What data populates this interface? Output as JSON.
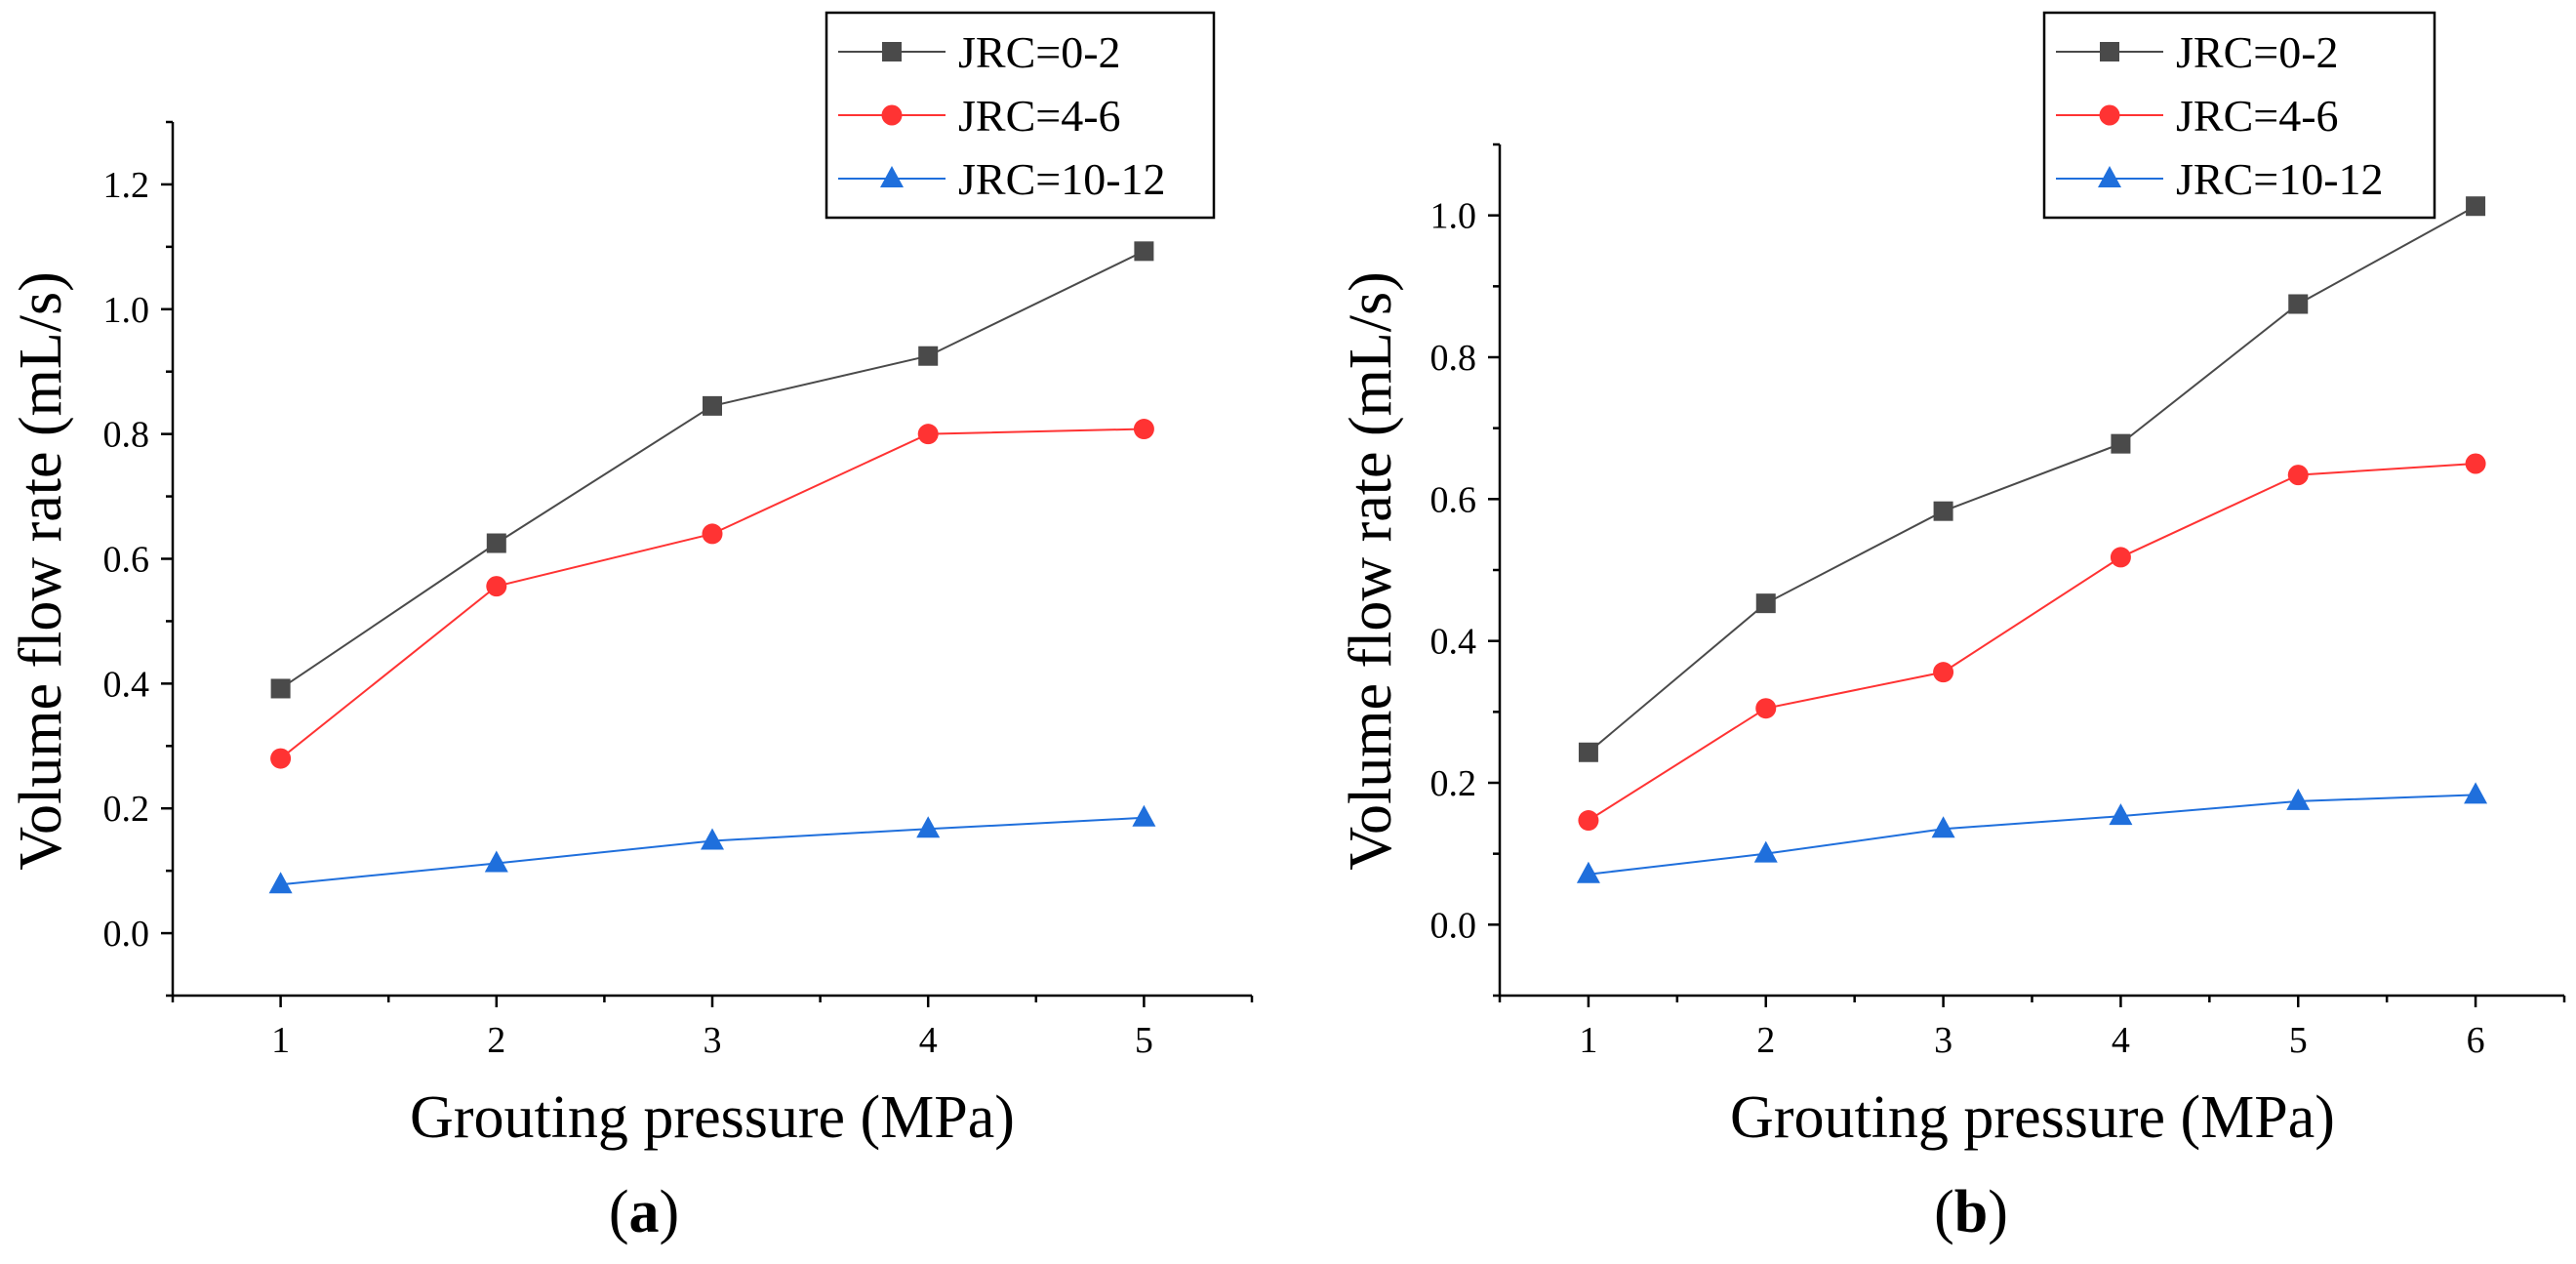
{
  "chart_data": [
    {
      "type": "line",
      "panel_label": "a",
      "x": [
        1,
        2,
        3,
        4,
        5
      ],
      "xlabel": "Grouting pressure (MPa)",
      "ylabel": "Volume flow rate (mL/s)",
      "xlim": [
        0.5,
        5.5
      ],
      "ylim": [
        -0.1,
        1.3
      ],
      "xticks": [
        1,
        2,
        3,
        4,
        5
      ],
      "yticks": [
        0.0,
        0.2,
        0.4,
        0.6,
        0.8,
        1.0,
        1.2
      ],
      "legend_position": "top-right",
      "series": [
        {
          "name": "JRC=0-2",
          "marker": "square",
          "color": "#4a4a4a",
          "values": [
            0.392,
            0.625,
            0.845,
            0.925,
            1.093
          ]
        },
        {
          "name": "JRC=4-6",
          "marker": "circle",
          "color": "#ff3333",
          "values": [
            0.28,
            0.556,
            0.64,
            0.8,
            0.808
          ]
        },
        {
          "name": "JRC=10-12",
          "marker": "triangle",
          "color": "#1f6fdc",
          "values": [
            0.078,
            0.112,
            0.148,
            0.167,
            0.185
          ]
        }
      ]
    },
    {
      "type": "line",
      "panel_label": "b",
      "x": [
        1,
        2,
        3,
        4,
        5,
        6
      ],
      "xlabel": "Grouting pressure (MPa)",
      "ylabel": "Volume flow rate (mL/s)",
      "xlim": [
        0.5,
        6.5
      ],
      "ylim": [
        -0.1,
        1.1
      ],
      "xticks": [
        1,
        2,
        3,
        4,
        5,
        6
      ],
      "yticks": [
        0.0,
        0.2,
        0.4,
        0.6,
        0.8,
        1.0
      ],
      "legend_position": "top-right",
      "series": [
        {
          "name": "JRC=0-2",
          "marker": "square",
          "color": "#4a4a4a",
          "values": [
            0.243,
            0.453,
            0.583,
            0.678,
            0.875,
            1.013
          ]
        },
        {
          "name": "JRC=4-6",
          "marker": "circle",
          "color": "#ff3333",
          "values": [
            0.147,
            0.305,
            0.356,
            0.518,
            0.634,
            0.65
          ]
        },
        {
          "name": "JRC=10-12",
          "marker": "triangle",
          "color": "#1f6fdc",
          "values": [
            0.071,
            0.1,
            0.135,
            0.153,
            0.174,
            0.183
          ]
        }
      ]
    }
  ]
}
